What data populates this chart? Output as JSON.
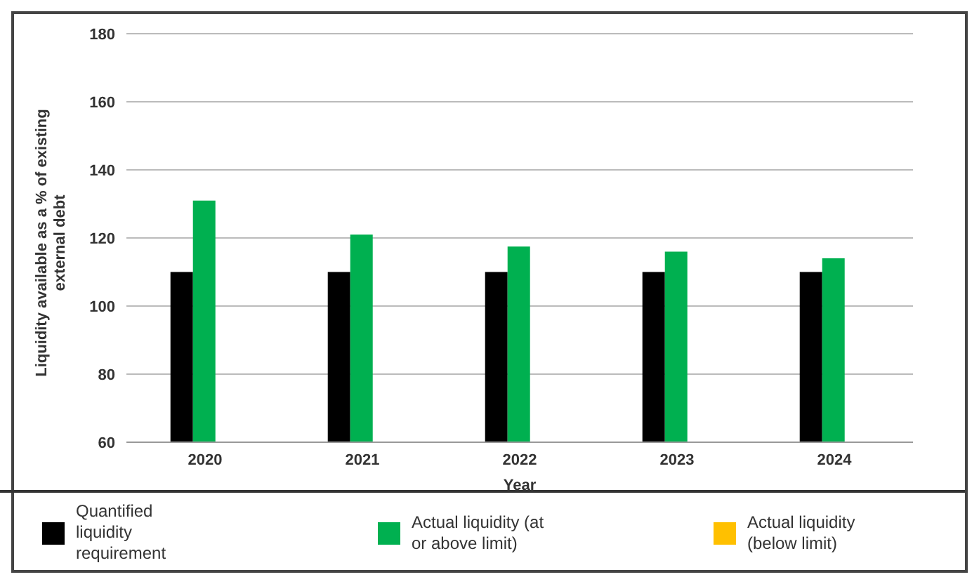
{
  "chart_data": {
    "type": "bar",
    "xlabel": "Year",
    "ylabel": "Liquidity available as a % of existing external debt",
    "categories": [
      "2020",
      "2021",
      "2022",
      "2023",
      "2024"
    ],
    "series": [
      {
        "name": "Quantified liquidity requirement",
        "color": "#000000",
        "values": [
          110,
          110,
          110,
          110,
          110
        ]
      },
      {
        "name": "Actual liquidity (at or above limit)",
        "color": "#00b050",
        "values": [
          131,
          121,
          117.5,
          116,
          114
        ]
      },
      {
        "name": "Actual liquidity (below limit)",
        "color": "#ffc000",
        "values": [
          null,
          null,
          null,
          null,
          null
        ]
      }
    ],
    "ylim": [
      60,
      180
    ],
    "yticks": [
      60,
      80,
      100,
      120,
      140,
      160,
      180
    ],
    "grid": "y",
    "legend": "bottom"
  }
}
